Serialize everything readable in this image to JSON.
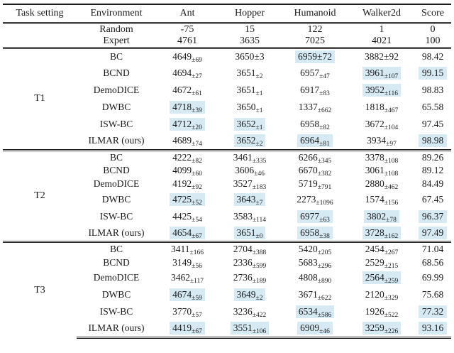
{
  "colors": {
    "highlight": "#d6eaf4",
    "rule": "#1a1a1a",
    "text": "#1a1a1a"
  },
  "table": {
    "columns": [
      "Task setting",
      "Environment",
      "Ant",
      "Hopper",
      "Humanoid",
      "Walker2d",
      "Score"
    ],
    "baselines": [
      {
        "name": "Random",
        "values": [
          "-75",
          "15",
          "122",
          "1",
          "0"
        ]
      },
      {
        "name": "Expert",
        "values": [
          "4761",
          "3635",
          "7025",
          "4021",
          "100"
        ]
      }
    ],
    "blocks": [
      {
        "task": "T1",
        "rows": [
          {
            "method": "BC",
            "compact": false,
            "cells": [
              {
                "v": "4649",
                "err": "±69",
                "inline": false,
                "hl": false
              },
              {
                "v": "3650",
                "err": "±3",
                "inline": true,
                "hl": false
              },
              {
                "v": "6959",
                "err": "±72",
                "inline": true,
                "hl": true
              },
              {
                "v": "3882",
                "err": "±92",
                "inline": true,
                "hl": false
              }
            ],
            "score": {
              "v": "98.42",
              "hl": false
            }
          },
          {
            "method": "BCND",
            "compact": false,
            "cells": [
              {
                "v": "4694",
                "err": "±27",
                "inline": false,
                "hl": false
              },
              {
                "v": "3651",
                "err": "±2",
                "inline": false,
                "hl": false
              },
              {
                "v": "6957",
                "err": "±47",
                "inline": false,
                "hl": false
              },
              {
                "v": "3961",
                "err": "±107",
                "inline": false,
                "hl": true
              }
            ],
            "score": {
              "v": "99.15",
              "hl": true
            }
          },
          {
            "method": "DemoDICE",
            "compact": false,
            "cells": [
              {
                "v": "4672",
                "err": "±61",
                "inline": false,
                "hl": false
              },
              {
                "v": "3651",
                "err": "±1",
                "inline": false,
                "hl": false
              },
              {
                "v": "6917",
                "err": "±83",
                "inline": false,
                "hl": false
              },
              {
                "v": "3952",
                "err": "±116",
                "inline": false,
                "hl": true
              }
            ],
            "score": {
              "v": "98.83",
              "hl": false
            }
          },
          {
            "method": "DWBC",
            "compact": false,
            "cells": [
              {
                "v": "4718",
                "err": "±39",
                "inline": false,
                "hl": true
              },
              {
                "v": "3650",
                "err": "±1",
                "inline": false,
                "hl": false
              },
              {
                "v": "1337",
                "err": "±662",
                "inline": false,
                "hl": false
              },
              {
                "v": "1818",
                "err": "±467",
                "inline": false,
                "hl": false
              }
            ],
            "score": {
              "v": "65.58",
              "hl": false
            }
          },
          {
            "method": "ISW-BC",
            "compact": false,
            "cells": [
              {
                "v": "4712",
                "err": "±20",
                "inline": false,
                "hl": true
              },
              {
                "v": "3652",
                "err": "±1",
                "inline": false,
                "hl": true
              },
              {
                "v": "6958",
                "err": "±82",
                "inline": false,
                "hl": false
              },
              {
                "v": "3672",
                "err": "±104",
                "inline": false,
                "hl": false
              }
            ],
            "score": {
              "v": "97.45",
              "hl": false
            }
          },
          {
            "method": "ILMAR (ours)",
            "compact": false,
            "cells": [
              {
                "v": "4689",
                "err": "±74",
                "inline": false,
                "hl": false
              },
              {
                "v": "3652",
                "err": "±2",
                "inline": false,
                "hl": true
              },
              {
                "v": "6964",
                "err": "±81",
                "inline": false,
                "hl": true
              },
              {
                "v": "3934",
                "err": "±97",
                "inline": false,
                "hl": false
              }
            ],
            "score": {
              "v": "98.98",
              "hl": true
            }
          }
        ]
      },
      {
        "task": "T2",
        "rows": [
          {
            "method": "BC",
            "compact": true,
            "cells": [
              {
                "v": "4222",
                "err": "±82",
                "inline": false,
                "hl": false
              },
              {
                "v": "3461",
                "err": "±335",
                "inline": false,
                "hl": false
              },
              {
                "v": "6266",
                "err": "±345",
                "inline": false,
                "hl": false
              },
              {
                "v": "3378",
                "err": "±108",
                "inline": false,
                "hl": false
              }
            ],
            "score": {
              "v": "89.26",
              "hl": false
            }
          },
          {
            "method": "BCND",
            "compact": true,
            "cells": [
              {
                "v": "4099",
                "err": "±60",
                "inline": false,
                "hl": false
              },
              {
                "v": "3606",
                "err": "±46",
                "inline": false,
                "hl": false
              },
              {
                "v": "6670",
                "err": "±382",
                "inline": false,
                "hl": false
              },
              {
                "v": "3061",
                "err": "±108",
                "inline": false,
                "hl": false
              }
            ],
            "score": {
              "v": "89.12",
              "hl": false
            }
          },
          {
            "method": "DemoDICE",
            "compact": true,
            "cells": [
              {
                "v": "4192",
                "err": "±92",
                "inline": false,
                "hl": false
              },
              {
                "v": "3527",
                "err": "±183",
                "inline": false,
                "hl": false
              },
              {
                "v": "5719",
                "err": "±791",
                "inline": false,
                "hl": false
              },
              {
                "v": "2880",
                "err": "±462",
                "inline": false,
                "hl": false
              }
            ],
            "score": {
              "v": "84.49",
              "hl": false
            }
          },
          {
            "method": "DWBC",
            "compact": false,
            "cells": [
              {
                "v": "4725",
                "err": "±52",
                "inline": false,
                "hl": true
              },
              {
                "v": "3643",
                "err": "±7",
                "inline": false,
                "hl": true
              },
              {
                "v": "2273",
                "err": "±1096",
                "inline": false,
                "hl": false
              },
              {
                "v": "1574",
                "err": "±156",
                "inline": false,
                "hl": false
              }
            ],
            "score": {
              "v": "67.45",
              "hl": false
            }
          },
          {
            "method": "ISW-BC",
            "compact": false,
            "cells": [
              {
                "v": "4425",
                "err": "±54",
                "inline": false,
                "hl": false
              },
              {
                "v": "3583",
                "err": "±114",
                "inline": false,
                "hl": false
              },
              {
                "v": "6977",
                "err": "±63",
                "inline": false,
                "hl": true
              },
              {
                "v": "3802",
                "err": "±78",
                "inline": false,
                "hl": true
              }
            ],
            "score": {
              "v": "96.37",
              "hl": true
            }
          },
          {
            "method": "ILMAR (ours)",
            "compact": false,
            "cells": [
              {
                "v": "4654",
                "err": "±67",
                "inline": false,
                "hl": true
              },
              {
                "v": "3651",
                "err": "±0",
                "inline": false,
                "hl": true
              },
              {
                "v": "6958",
                "err": "±38",
                "inline": false,
                "hl": true
              },
              {
                "v": "3728",
                "err": "±162",
                "inline": false,
                "hl": true
              }
            ],
            "score": {
              "v": "97.49",
              "hl": true
            }
          }
        ]
      },
      {
        "task": "T3",
        "rows": [
          {
            "method": "BC",
            "compact": true,
            "cells": [
              {
                "v": "3411",
                "err": "±166",
                "inline": false,
                "hl": false
              },
              {
                "v": "2704",
                "err": "±388",
                "inline": false,
                "hl": false
              },
              {
                "v": "5420",
                "err": "±205",
                "inline": false,
                "hl": false
              },
              {
                "v": "2454",
                "err": "±267",
                "inline": false,
                "hl": false
              }
            ],
            "score": {
              "v": "71.04",
              "hl": false
            }
          },
          {
            "method": "BCND",
            "compact": true,
            "cells": [
              {
                "v": "3149",
                "err": "±56",
                "inline": false,
                "hl": false
              },
              {
                "v": "2336",
                "err": "±599",
                "inline": false,
                "hl": false
              },
              {
                "v": "5683",
                "err": "±296",
                "inline": false,
                "hl": false
              },
              {
                "v": "2529",
                "err": "±215",
                "inline": false,
                "hl": false
              }
            ],
            "score": {
              "v": "68.56",
              "hl": false
            }
          },
          {
            "method": "DemoDICE",
            "compact": false,
            "cells": [
              {
                "v": "3462",
                "err": "±117",
                "inline": false,
                "hl": false
              },
              {
                "v": "2736",
                "err": "±189",
                "inline": false,
                "hl": false
              },
              {
                "v": "4808",
                "err": "±890",
                "inline": false,
                "hl": false
              },
              {
                "v": "2564",
                "err": "±259",
                "inline": false,
                "hl": true
              }
            ],
            "score": {
              "v": "69.99",
              "hl": false
            }
          },
          {
            "method": "DWBC",
            "compact": false,
            "cells": [
              {
                "v": "4674",
                "err": "±59",
                "inline": false,
                "hl": true
              },
              {
                "v": "3649",
                "err": "±2",
                "inline": false,
                "hl": true
              },
              {
                "v": "3671",
                "err": "±622",
                "inline": false,
                "hl": false
              },
              {
                "v": "2120",
                "err": "±329",
                "inline": false,
                "hl": false
              }
            ],
            "score": {
              "v": "75.68",
              "hl": false
            }
          },
          {
            "method": "ISW-BC",
            "compact": false,
            "cells": [
              {
                "v": "3770",
                "err": "±57",
                "inline": false,
                "hl": false
              },
              {
                "v": "3236",
                "err": "±422",
                "inline": false,
                "hl": false
              },
              {
                "v": "6534",
                "err": "±586",
                "inline": false,
                "hl": true
              },
              {
                "v": "1926",
                "err": "±522",
                "inline": false,
                "hl": false
              }
            ],
            "score": {
              "v": "77.32",
              "hl": true
            }
          },
          {
            "method": "ILMAR (ours)",
            "compact": false,
            "cells": [
              {
                "v": "4419",
                "err": "±67",
                "inline": false,
                "hl": true
              },
              {
                "v": "3551",
                "err": "±106",
                "inline": false,
                "hl": true
              },
              {
                "v": "6909",
                "err": "±46",
                "inline": false,
                "hl": true
              },
              {
                "v": "3259",
                "err": "±226",
                "inline": false,
                "hl": true
              }
            ],
            "score": {
              "v": "93.16",
              "hl": true
            }
          }
        ]
      }
    ]
  }
}
